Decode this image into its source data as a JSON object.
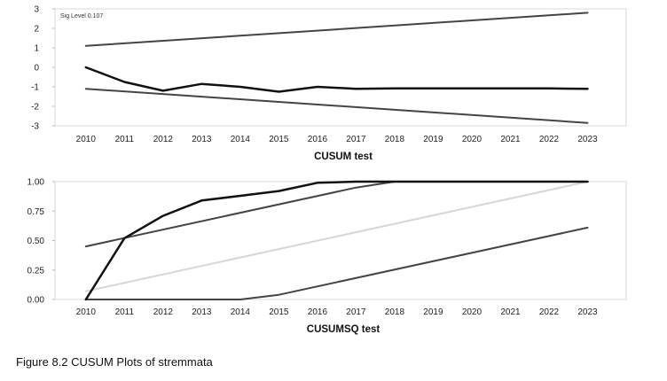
{
  "caption": "Figure 8.2 CUSUM Plots of stremmata",
  "chart_data": [
    {
      "type": "line",
      "title": "",
      "xlabel": "CUSUM test",
      "ylabel": "",
      "annotation": "Sig Level 0.107",
      "x": [
        "2010",
        "2011",
        "2012",
        "2013",
        "2014",
        "2015",
        "2016",
        "2017",
        "2018",
        "2019",
        "2020",
        "2021",
        "2022",
        "2023"
      ],
      "x_pos": [
        2010,
        2011,
        2012,
        2013,
        2014,
        2015,
        2016,
        2017,
        2018,
        2019,
        2020,
        2021,
        2022,
        2023
      ],
      "xlim": [
        2009.2,
        2024
      ],
      "ylim": [
        -3,
        3
      ],
      "yticks": [
        3,
        2,
        1,
        0,
        -1,
        -2,
        -3
      ],
      "ytick_labels": [
        "3",
        "2",
        "1",
        "0",
        "-1",
        "-2",
        "-3"
      ],
      "grid": "none",
      "series": [
        {
          "role": "upper",
          "color": "#444444",
          "width": 2,
          "x": [
            2010,
            2023
          ],
          "y": [
            1.1,
            2.8
          ]
        },
        {
          "role": "lower",
          "color": "#444444",
          "width": 2,
          "x": [
            2010,
            2023
          ],
          "y": [
            -1.1,
            -2.85
          ]
        },
        {
          "role": "cusum",
          "color": "#111111",
          "width": 2.5,
          "x": [
            2010,
            2011,
            2012,
            2013,
            2014,
            2015,
            2016,
            2017,
            2018,
            2019,
            2020,
            2021,
            2022,
            2023
          ],
          "y": [
            0,
            -0.75,
            -1.2,
            -0.85,
            -1.0,
            -1.25,
            -1.0,
            -1.1,
            -1.08,
            -1.08,
            -1.08,
            -1.08,
            -1.08,
            -1.1
          ]
        }
      ]
    },
    {
      "type": "line",
      "title": "",
      "xlabel": "CUSUMSQ test",
      "ylabel": "",
      "x": [
        "2010",
        "2011",
        "2012",
        "2013",
        "2014",
        "2015",
        "2016",
        "2017",
        "2018",
        "2019",
        "2020",
        "2021",
        "2022",
        "2023"
      ],
      "x_pos": [
        2010,
        2011,
        2012,
        2013,
        2014,
        2015,
        2016,
        2017,
        2018,
        2019,
        2020,
        2021,
        2022,
        2023
      ],
      "xlim": [
        2009.2,
        2024
      ],
      "ylim": [
        0,
        1
      ],
      "yticks": [
        1.0,
        0.75,
        0.5,
        0.25,
        0.0
      ],
      "ytick_labels": [
        "1.00",
        "0.75",
        "0.50",
        "0.25",
        "0.00"
      ],
      "grid": "none",
      "series": [
        {
          "role": "reference",
          "color": "#d6d6d6",
          "width": 2,
          "x": [
            2010,
            2023
          ],
          "y": [
            0.07,
            1.0
          ]
        },
        {
          "role": "upper",
          "color": "#444444",
          "width": 2,
          "x": [
            2010,
            2017,
            2018,
            2023
          ],
          "y": [
            0.45,
            0.95,
            1.0,
            1.0
          ]
        },
        {
          "role": "lower",
          "color": "#444444",
          "width": 2,
          "x": [
            2010,
            2014,
            2015,
            2023
          ],
          "y": [
            0,
            0,
            0.04,
            0.61
          ]
        },
        {
          "role": "cusumsq",
          "color": "#111111",
          "width": 2.5,
          "x": [
            2010,
            2011,
            2012,
            2013,
            2014,
            2015,
            2016,
            2017,
            2018,
            2023
          ],
          "y": [
            0,
            0.52,
            0.71,
            0.84,
            0.88,
            0.92,
            0.99,
            1.0,
            1.0,
            1.0
          ]
        }
      ]
    }
  ]
}
